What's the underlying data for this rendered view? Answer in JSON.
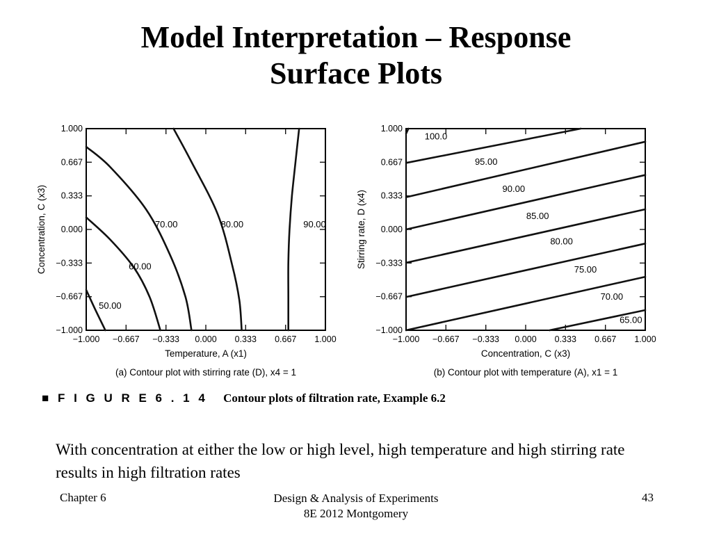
{
  "slide": {
    "title_line1": "Model Interpretation – Response",
    "title_line2": "Surface Plots"
  },
  "figure": {
    "label": "■ F I G U R E   6 . 1 4",
    "text": "Contour plots of filtration rate, Example 6.2"
  },
  "body_text": "With concentration at either the low or high level, high temperature and high stirring rate results in high filtration rates",
  "footer": {
    "left": "Chapter 6",
    "center_line1": "Design & Analysis of Experiments",
    "center_line2": "8E 2012 Montgomery",
    "right": "43"
  },
  "chart_data": [
    {
      "type": "contour",
      "xlabel": "Temperature, A (x1)",
      "ylabel": "Concentration, C (x3)",
      "caption": "(a) Contour plot with stirring rate (D), x4 = 1",
      "xlim": [
        -1,
        1
      ],
      "ylim": [
        -1,
        1
      ],
      "ticks": [
        "-1.000",
        "-0.667",
        "-0.333",
        "0.000",
        "0.333",
        "0.667",
        "1.000"
      ],
      "tick_values": [
        -1,
        -0.667,
        -0.333,
        0,
        0.333,
        0.667,
        1
      ],
      "contours": [
        {
          "level": "50.00",
          "points": [
            [
              -1,
              -0.6
            ],
            [
              -0.93,
              -0.78
            ],
            [
              -0.84,
              -1
            ]
          ],
          "label_at": [
            -0.8,
            -0.76
          ]
        },
        {
          "level": "60.00",
          "points": [
            [
              -1,
              0.12
            ],
            [
              -0.8,
              -0.1
            ],
            [
              -0.6,
              -0.38
            ],
            [
              -0.47,
              -0.67
            ],
            [
              -0.38,
              -1
            ]
          ],
          "label_at": [
            -0.55,
            -0.37
          ]
        },
        {
          "level": "70.00",
          "points": [
            [
              -1,
              0.82
            ],
            [
              -0.8,
              0.62
            ],
            [
              -0.5,
              0.2
            ],
            [
              -0.3,
              -0.25
            ],
            [
              -0.17,
              -0.67
            ],
            [
              -0.12,
              -1
            ]
          ],
          "label_at": [
            -0.33,
            0.05
          ]
        },
        {
          "level": "80.00",
          "points": [
            [
              -0.27,
              1
            ],
            [
              -0.12,
              0.67
            ],
            [
              0.1,
              0.15
            ],
            [
              0.22,
              -0.35
            ],
            [
              0.28,
              -0.7
            ],
            [
              0.3,
              -1
            ]
          ],
          "label_at": [
            0.22,
            0.05
          ]
        },
        {
          "level": "90.00",
          "points": [
            [
              0.78,
              1
            ],
            [
              0.75,
              0.67
            ],
            [
              0.72,
              0.33
            ],
            [
              0.7,
              0
            ],
            [
              0.69,
              -0.33
            ],
            [
              0.69,
              -0.67
            ],
            [
              0.69,
              -1
            ]
          ],
          "label_at": [
            0.91,
            0.05
          ]
        }
      ]
    },
    {
      "type": "contour",
      "xlabel": "Concentration, C (x3)",
      "ylabel": "Stirring rate, D (x4)",
      "caption": "(b) Contour plot with temperature (A), x1 = 1",
      "xlim": [
        -1,
        1
      ],
      "ylim": [
        -1,
        1
      ],
      "ticks": [
        "-1.000",
        "-0.667",
        "-0.333",
        "0.000",
        "0.333",
        "0.667",
        "1.000"
      ],
      "tick_values": [
        -1,
        -0.667,
        -0.333,
        0,
        0.333,
        0.667,
        1
      ],
      "contours": [
        {
          "level": "100.0",
          "points": [
            [
              -1,
              0.95
            ],
            [
              -0.98,
              1
            ]
          ],
          "label_at": [
            -0.75,
            0.92
          ]
        },
        {
          "level": "95.00",
          "points": [
            [
              -1,
              0.66
            ],
            [
              0.46,
              1
            ]
          ],
          "label_at": [
            -0.33,
            0.67
          ]
        },
        {
          "level": "90.00",
          "points": [
            [
              -1,
              0.32
            ],
            [
              1,
              0.87
            ]
          ],
          "label_at": [
            -0.1,
            0.4
          ]
        },
        {
          "level": "85.00",
          "points": [
            [
              -1,
              0
            ],
            [
              1,
              0.54
            ]
          ],
          "label_at": [
            0.1,
            0.13
          ]
        },
        {
          "level": "80.00",
          "points": [
            [
              -1,
              -0.33
            ],
            [
              1,
              0.2
            ]
          ],
          "label_at": [
            0.3,
            -0.12
          ]
        },
        {
          "level": "75.00",
          "points": [
            [
              -1,
              -0.67
            ],
            [
              1,
              -0.14
            ]
          ],
          "label_at": [
            0.5,
            -0.4
          ]
        },
        {
          "level": "70.00",
          "points": [
            [
              -1,
              -1
            ],
            [
              1,
              -0.47
            ]
          ],
          "label_at": [
            0.72,
            -0.67
          ]
        },
        {
          "level": "65.00",
          "points": [
            [
              0.2,
              -1
            ],
            [
              1,
              -0.8
            ]
          ],
          "label_at": [
            0.88,
            -0.9
          ]
        }
      ]
    }
  ]
}
